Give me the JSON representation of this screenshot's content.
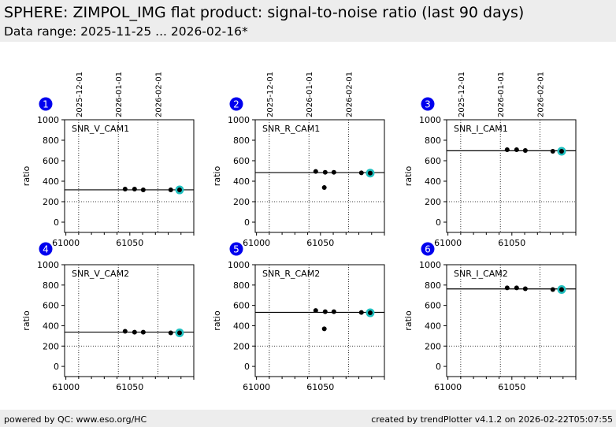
{
  "header": {
    "title": "SPHERE: ZIMPOL_IMG flat product: signal-to-noise ratio (last 90 days)",
    "subtitle": "Data range: 2025-11-25 ... 2026-02-16*"
  },
  "footer": {
    "left": "powered by QC: www.eso.org/HC",
    "right": "created by trendPlotter v4.1.2 on 2026-02-22T05:07:55"
  },
  "colors": {
    "marker": "#000000",
    "latest_highlight": "#20c0c0",
    "badge": "#0000ee",
    "header_bg": "#ededed"
  },
  "chart_data": [
    {
      "type": "scatter",
      "badge": "1",
      "label": "SNR_V_CAM1",
      "ylabel": "ratio",
      "xlim": [
        60999,
        61100
      ],
      "ylim": [
        -100,
        1000
      ],
      "xticks": [
        "61000",
        "61050"
      ],
      "xtick_values": [
        61000,
        61050
      ],
      "yticks": [
        "0",
        "200",
        "400",
        "600",
        "800",
        "1000"
      ],
      "ytick_values": [
        0,
        200,
        400,
        600,
        800,
        1000
      ],
      "date_gridlines": [
        {
          "label": "2025-12-01",
          "x": 61010
        },
        {
          "label": "2026-01-01",
          "x": 61041
        },
        {
          "label": "2026-02-01",
          "x": 61072
        }
      ],
      "hline_dotted": 200,
      "reference_line": 316,
      "x": [
        61046.3,
        61053.7,
        61060.5,
        61082,
        61088.9
      ],
      "y": [
        323,
        323,
        315,
        315,
        315
      ],
      "highlight_index": 4
    },
    {
      "type": "scatter",
      "badge": "2",
      "label": "SNR_R_CAM1",
      "ylabel": "ratio",
      "xlim": [
        60999,
        61100
      ],
      "ylim": [
        -100,
        1000
      ],
      "xticks": [
        "61000",
        "61050"
      ],
      "xtick_values": [
        61000,
        61050
      ],
      "yticks": [
        "0",
        "200",
        "400",
        "600",
        "800",
        "1000"
      ],
      "ytick_values": [
        0,
        200,
        400,
        600,
        800,
        1000
      ],
      "date_gridlines": [
        {
          "label": "2025-12-01",
          "x": 61010
        },
        {
          "label": "2026-01-01",
          "x": 61041
        },
        {
          "label": "2026-02-01",
          "x": 61072
        }
      ],
      "hline_dotted": 200,
      "reference_line": 484,
      "x": [
        61046.3,
        61053,
        61053.7,
        61060.5,
        61082,
        61088.9
      ],
      "y": [
        495,
        338,
        487,
        487,
        482,
        479
      ],
      "highlight_index": 5
    },
    {
      "type": "scatter",
      "badge": "3",
      "label": "SNR_I_CAM1",
      "ylabel": "ratio",
      "xlim": [
        60999,
        61100
      ],
      "ylim": [
        -100,
        1000
      ],
      "xticks": [
        "61000",
        "61050"
      ],
      "xtick_values": [
        61000,
        61050
      ],
      "yticks": [
        "0",
        "200",
        "400",
        "600",
        "800",
        "1000"
      ],
      "ytick_values": [
        0,
        200,
        400,
        600,
        800,
        1000
      ],
      "date_gridlines": [
        {
          "label": "2025-12-01",
          "x": 61010
        },
        {
          "label": "2026-01-01",
          "x": 61041
        },
        {
          "label": "2026-02-01",
          "x": 61072
        }
      ],
      "hline_dotted": 200,
      "reference_line": 697,
      "x": [
        61046.3,
        61053.7,
        61060.5,
        61082,
        61088.9
      ],
      "y": [
        708,
        708,
        700,
        692,
        692
      ],
      "highlight_index": 4
    },
    {
      "type": "scatter",
      "badge": "4",
      "label": "SNR_V_CAM2",
      "ylabel": "ratio",
      "xlim": [
        60999,
        61100
      ],
      "ylim": [
        -100,
        1000
      ],
      "xticks": [
        "61000",
        "61050"
      ],
      "xtick_values": [
        61000,
        61050
      ],
      "yticks": [
        "0",
        "200",
        "400",
        "600",
        "800",
        "1000"
      ],
      "ytick_values": [
        0,
        200,
        400,
        600,
        800,
        1000
      ],
      "date_gridlines": [
        {
          "label": "2025-12-01",
          "x": 61010
        },
        {
          "label": "2026-01-01",
          "x": 61041
        },
        {
          "label": "2026-02-01",
          "x": 61072
        }
      ],
      "hline_dotted": 200,
      "reference_line": 337,
      "x": [
        61046.3,
        61053.7,
        61060.5,
        61082,
        61088.9
      ],
      "y": [
        345,
        337,
        337,
        330,
        330
      ],
      "highlight_index": 4
    },
    {
      "type": "scatter",
      "badge": "5",
      "label": "SNR_R_CAM2",
      "ylabel": "ratio",
      "xlim": [
        60999,
        61100
      ],
      "ylim": [
        -100,
        1000
      ],
      "xticks": [
        "61000",
        "61050"
      ],
      "xtick_values": [
        61000,
        61050
      ],
      "yticks": [
        "0",
        "200",
        "400",
        "600",
        "800",
        "1000"
      ],
      "ytick_values": [
        0,
        200,
        400,
        600,
        800,
        1000
      ],
      "date_gridlines": [
        {
          "label": "2025-12-01",
          "x": 61010
        },
        {
          "label": "2026-01-01",
          "x": 61041
        },
        {
          "label": "2026-02-01",
          "x": 61072
        }
      ],
      "hline_dotted": 200,
      "reference_line": 532,
      "x": [
        61046.3,
        61053,
        61053.7,
        61060.5,
        61082,
        61088.9
      ],
      "y": [
        550,
        370,
        538,
        538,
        530,
        527
      ],
      "highlight_index": 5
    },
    {
      "type": "scatter",
      "badge": "6",
      "label": "SNR_I_CAM2",
      "ylabel": "ratio",
      "xlim": [
        60999,
        61100
      ],
      "ylim": [
        -100,
        1000
      ],
      "xticks": [
        "61000",
        "61050"
      ],
      "xtick_values": [
        61000,
        61050
      ],
      "yticks": [
        "0",
        "200",
        "400",
        "600",
        "800",
        "1000"
      ],
      "ytick_values": [
        0,
        200,
        400,
        600,
        800,
        1000
      ],
      "date_gridlines": [
        {
          "label": "2025-12-01",
          "x": 61010
        },
        {
          "label": "2026-01-01",
          "x": 61041
        },
        {
          "label": "2026-02-01",
          "x": 61072
        }
      ],
      "hline_dotted": 200,
      "reference_line": 762,
      "x": [
        61046.3,
        61053.7,
        61060.5,
        61082,
        61088.9
      ],
      "y": [
        772,
        772,
        764,
        756,
        756
      ],
      "highlight_index": 4
    }
  ]
}
